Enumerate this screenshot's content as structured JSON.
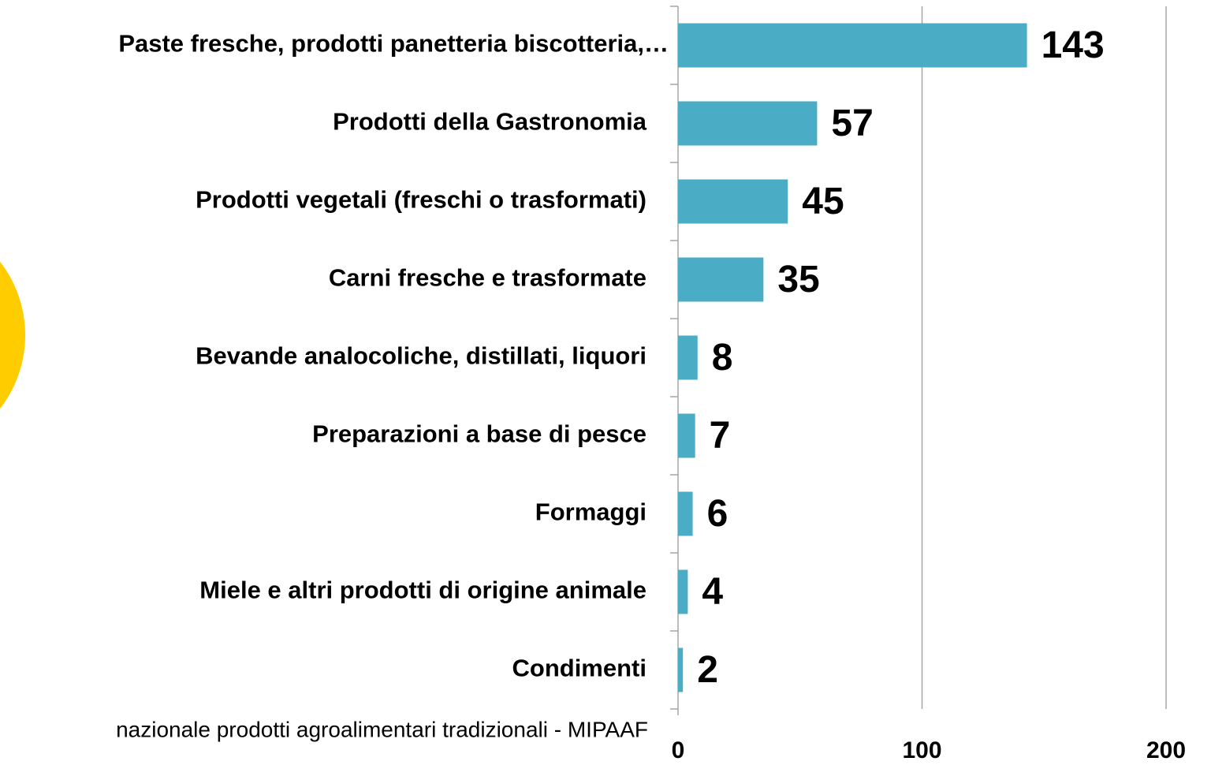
{
  "chart_data": {
    "type": "bar",
    "orientation": "horizontal",
    "categories": [
      "Paste fresche, prodotti panetteria biscotteria,…",
      "Prodotti della Gastronomia",
      "Prodotti vegetali (freschi o trasformati)",
      "Carni fresche e trasformate",
      "Bevande analocoliche, distillati, liquori",
      "Preparazioni a base di pesce",
      "Formaggi",
      "Miele e altri prodotti di origine animale",
      "Condimenti"
    ],
    "values": [
      143,
      57,
      45,
      35,
      8,
      7,
      6,
      4,
      2
    ],
    "color": "#4bacc6",
    "xlim": [
      0,
      200
    ],
    "xticks": [
      0,
      100,
      200
    ],
    "grid": true,
    "source": "nazionale prodotti agroalimentari tradizionali - MIPAAF"
  }
}
